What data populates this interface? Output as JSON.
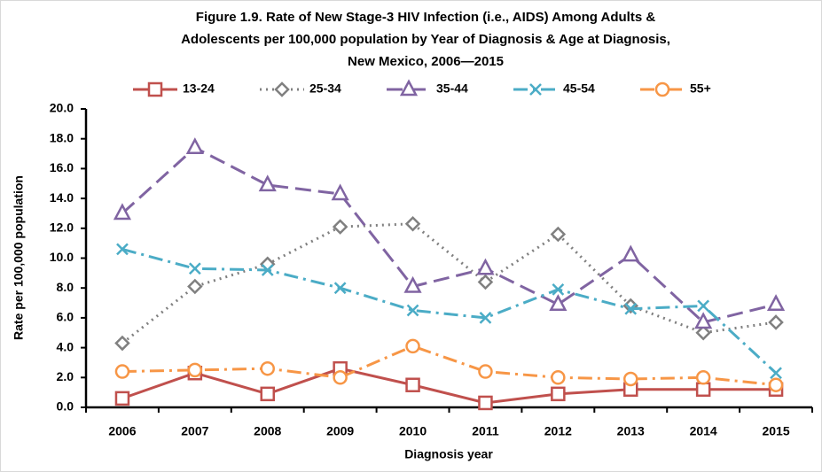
{
  "chart_data": {
    "type": "line",
    "title": [
      "Figure 1.9. Rate of New Stage-3 HIV Infection (i.e., AIDS) Among Adults &",
      "Adolescents per 100,000 population by Year of Diagnosis & Age at Diagnosis,",
      "New Mexico, 2006—2015"
    ],
    "x_label": "Diagnosis year",
    "y_label": "Rate per 100,000 population",
    "categories": [
      "2006",
      "2007",
      "2008",
      "2009",
      "2010",
      "2011",
      "2012",
      "2013",
      "2014",
      "2015"
    ],
    "series": [
      {
        "name": "13-24",
        "color": "#c0504d",
        "marker": "square",
        "dash": "solid",
        "values": [
          0.6,
          2.3,
          0.9,
          2.6,
          1.5,
          0.3,
          0.9,
          1.2,
          1.2,
          1.2
        ]
      },
      {
        "name": "25-34",
        "color": "#808080",
        "marker": "diamond",
        "dash": "dot",
        "values": [
          4.3,
          8.1,
          9.6,
          12.1,
          12.3,
          8.4,
          11.6,
          6.8,
          5.0,
          5.7
        ]
      },
      {
        "name": "35-44",
        "color": "#8064a2",
        "marker": "triangle",
        "dash": "dash",
        "values": [
          13.0,
          17.4,
          14.9,
          14.3,
          8.1,
          9.3,
          6.9,
          10.2,
          5.7,
          6.9
        ]
      },
      {
        "name": "45-54",
        "color": "#4bacc6",
        "marker": "x",
        "dash": "dashdot",
        "values": [
          10.6,
          9.3,
          9.2,
          8.0,
          6.5,
          6.0,
          7.9,
          6.6,
          6.8,
          2.3
        ]
      },
      {
        "name": "55+",
        "color": "#f79646",
        "marker": "circle",
        "dash": "dashdot",
        "values": [
          2.4,
          2.5,
          2.6,
          2.0,
          4.1,
          2.4,
          2.0,
          1.9,
          2.0,
          1.5
        ]
      }
    ],
    "ylim": [
      0,
      20
    ],
    "yticks": [
      {
        "value": 0,
        "label": "0.0"
      },
      {
        "value": 2,
        "label": "2.0"
      },
      {
        "value": 4,
        "label": "4.0"
      },
      {
        "value": 6,
        "label": "6.0"
      },
      {
        "value": 8,
        "label": "8.0"
      },
      {
        "value": 10,
        "label": "10.0"
      },
      {
        "value": 12,
        "label": "12.0"
      },
      {
        "value": 14,
        "label": "14.0"
      },
      {
        "value": 16,
        "label": "16.0"
      },
      {
        "value": 18,
        "label": "18.0"
      },
      {
        "value": 20,
        "label": "20.0"
      }
    ],
    "grid": false,
    "legend": "top"
  }
}
